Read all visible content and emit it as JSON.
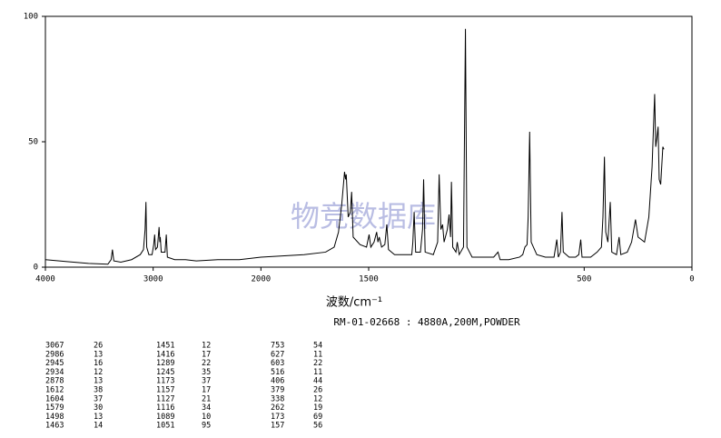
{
  "chart_data": {
    "type": "line",
    "xlabel": "波数/cm⁻¹",
    "subtitle": "RM-01-02668 : 4880A,200M,POWDER",
    "watermark": "物竞数据库",
    "color": "#000000",
    "xlim": [
      4000,
      0
    ],
    "xticks": [
      4000,
      3000,
      2000,
      1500,
      500,
      0
    ],
    "xscale_break": {
      "at": 2000,
      "factor": 2
    },
    "ylim": [
      0,
      100
    ],
    "yticks": [
      0,
      50,
      100
    ],
    "x": [
      4000,
      3800,
      3600,
      3420,
      3390,
      3378,
      3365,
      3300,
      3200,
      3120,
      3090,
      3075,
      3067,
      3060,
      3040,
      3010,
      2995,
      2986,
      2978,
      2960,
      2945,
      2938,
      2934,
      2925,
      2890,
      2878,
      2868,
      2800,
      2700,
      2600,
      2400,
      2200,
      2000,
      1800,
      1700,
      1660,
      1640,
      1625,
      1612,
      1607,
      1604,
      1595,
      1585,
      1579,
      1572,
      1540,
      1510,
      1498,
      1490,
      1475,
      1463,
      1457,
      1451,
      1440,
      1425,
      1416,
      1408,
      1380,
      1300,
      1295,
      1289,
      1282,
      1260,
      1250,
      1245,
      1238,
      1200,
      1180,
      1173,
      1165,
      1157,
      1150,
      1135,
      1127,
      1120,
      1116,
      1110,
      1095,
      1089,
      1080,
      1060,
      1051,
      1044,
      1020,
      950,
      920,
      900,
      890,
      850,
      800,
      785,
      775,
      765,
      760,
      753,
      746,
      720,
      680,
      640,
      627,
      620,
      610,
      603,
      597,
      570,
      540,
      525,
      516,
      510,
      470,
      440,
      420,
      413,
      406,
      400,
      390,
      379,
      372,
      350,
      338,
      330,
      300,
      280,
      262,
      250,
      220,
      200,
      185,
      173,
      168,
      162,
      157,
      152,
      145,
      135,
      130
    ],
    "values": [
      3,
      2.2,
      1.5,
      1.2,
      3,
      7,
      2.5,
      2,
      3,
      5,
      7,
      15,
      26,
      8,
      5,
      5,
      9,
      13,
      7,
      8,
      16,
      10,
      12,
      6,
      6,
      13,
      4,
      3,
      3,
      2.5,
      3,
      3,
      4,
      5,
      6,
      8,
      14,
      25,
      38,
      35,
      37,
      20,
      22,
      30,
      12,
      9,
      8,
      13,
      8,
      10,
      14,
      10,
      12,
      8,
      9,
      17,
      7,
      5,
      5,
      10,
      22,
      6,
      6,
      15,
      35,
      6,
      5,
      10,
      37,
      15,
      17,
      10,
      15,
      21,
      12,
      34,
      8,
      6,
      10,
      5,
      8,
      95,
      8,
      4,
      4,
      4,
      6,
      3,
      3,
      4,
      5,
      8,
      9,
      20,
      54,
      10,
      5,
      4,
      4,
      11,
      4,
      6,
      22,
      6,
      4,
      4,
      5,
      11,
      4,
      4,
      6,
      8,
      20,
      44,
      14,
      10,
      26,
      6,
      5,
      12,
      5,
      6,
      10,
      19,
      12,
      10,
      20,
      40,
      69,
      48,
      52,
      56,
      35,
      33,
      48,
      47
    ]
  },
  "peak_table": [
    [
      [
        3067,
        26
      ],
      [
        2986,
        13
      ],
      [
        2945,
        16
      ],
      [
        2934,
        12
      ],
      [
        2878,
        13
      ],
      [
        1612,
        38
      ],
      [
        1604,
        37
      ],
      [
        1579,
        30
      ],
      [
        1498,
        13
      ],
      [
        1463,
        14
      ]
    ],
    [
      [
        1451,
        12
      ],
      [
        1416,
        17
      ],
      [
        1289,
        22
      ],
      [
        1245,
        35
      ],
      [
        1173,
        37
      ],
      [
        1157,
        17
      ],
      [
        1127,
        21
      ],
      [
        1116,
        34
      ],
      [
        1089,
        10
      ],
      [
        1051,
        95
      ]
    ],
    [
      [
        753,
        54
      ],
      [
        627,
        11
      ],
      [
        603,
        22
      ],
      [
        516,
        11
      ],
      [
        406,
        44
      ],
      [
        379,
        26
      ],
      [
        338,
        12
      ],
      [
        262,
        19
      ],
      [
        173,
        69
      ],
      [
        157,
        56
      ]
    ]
  ]
}
